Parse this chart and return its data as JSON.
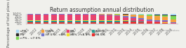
{
  "title": "Return assumption annual distribution",
  "ylabel": "Percentage of total plans (129)",
  "source": "National Association of State Retirement Administrators",
  "years": [
    "2001",
    "2002",
    "2003",
    "2004",
    "2005",
    "2006",
    "2007",
    "2008",
    "2009",
    "2010",
    "2011",
    "2012",
    "2013",
    "2014",
    "2015",
    "2016",
    "2017",
    "2018",
    "2019"
  ],
  "categories": [
    ">8.5%",
    "8.50%",
    ">8% - <8.5%",
    "8%",
    ">7.5% - <8%",
    "7.50%",
    ">7% - <7.5%",
    "7%",
    "<7%"
  ],
  "colors_map": {
    "<7%": "#a8d8f5",
    "7%": "#2a2a2a",
    ">7% - <7.5%": "#7ed957",
    "7.50%": "#f4a040",
    ">7.5% - <8%": "#7878cc",
    "8%": "#e8436e",
    ">8% - <8.5%": "#f0de30",
    "8.50%": "#2a9d8f",
    ">8.5%": "#e83030"
  },
  "data": {
    ">8.5%": [
      17,
      17,
      17,
      19,
      19,
      19,
      18,
      18,
      18,
      17,
      19,
      19,
      23,
      22,
      18,
      13,
      13,
      10,
      1
    ],
    "8.50%": [
      14,
      14,
      14,
      14,
      14,
      14,
      14,
      14,
      14,
      13,
      12,
      11,
      9,
      7,
      5,
      3,
      2,
      2,
      1
    ],
    ">8% - <8.5%": [
      4,
      4,
      4,
      5,
      4,
      4,
      4,
      4,
      4,
      5,
      5,
      5,
      4,
      3,
      2,
      1,
      1,
      1,
      1
    ],
    "8%": [
      60,
      60,
      60,
      57,
      58,
      58,
      60,
      60,
      60,
      55,
      48,
      42,
      32,
      25,
      18,
      12,
      10,
      8,
      4
    ],
    ">7.5% - <8%": [
      5,
      5,
      5,
      5,
      5,
      5,
      4,
      4,
      4,
      8,
      10,
      12,
      15,
      17,
      18,
      18,
      15,
      14,
      8
    ],
    "7.50%": [
      0,
      0,
      0,
      0,
      0,
      0,
      0,
      0,
      0,
      2,
      5,
      8,
      12,
      18,
      26,
      36,
      38,
      40,
      28
    ],
    ">7% - <7.5%": [
      0,
      0,
      0,
      0,
      0,
      0,
      0,
      0,
      0,
      0,
      1,
      2,
      3,
      5,
      8,
      10,
      12,
      14,
      40
    ],
    "7%": [
      0,
      0,
      0,
      0,
      0,
      0,
      0,
      0,
      0,
      0,
      0,
      0,
      1,
      1,
      2,
      2,
      4,
      4,
      2
    ],
    "<7%": [
      0,
      0,
      0,
      0,
      0,
      0,
      0,
      0,
      0,
      0,
      0,
      1,
      1,
      2,
      3,
      5,
      5,
      7,
      15
    ]
  },
  "legend_order": [
    "<7%",
    "7%",
    ">7% - <7.5%",
    "7.50%",
    ">7.5% - <8%",
    "8%",
    ">8% - <8.5%",
    "8.50%",
    ">8.5%"
  ],
  "legend_ncol": 4,
  "bg_color": "#f0f0ec",
  "grid_color": "#ffffff",
  "title_fontsize": 5.5,
  "tick_fontsize": 3.5,
  "ylabel_fontsize": 3.8,
  "legend_fontsize": 3.2,
  "source_fontsize": 2.8,
  "bar_width": 0.7,
  "ylim": [
    0,
    105
  ]
}
